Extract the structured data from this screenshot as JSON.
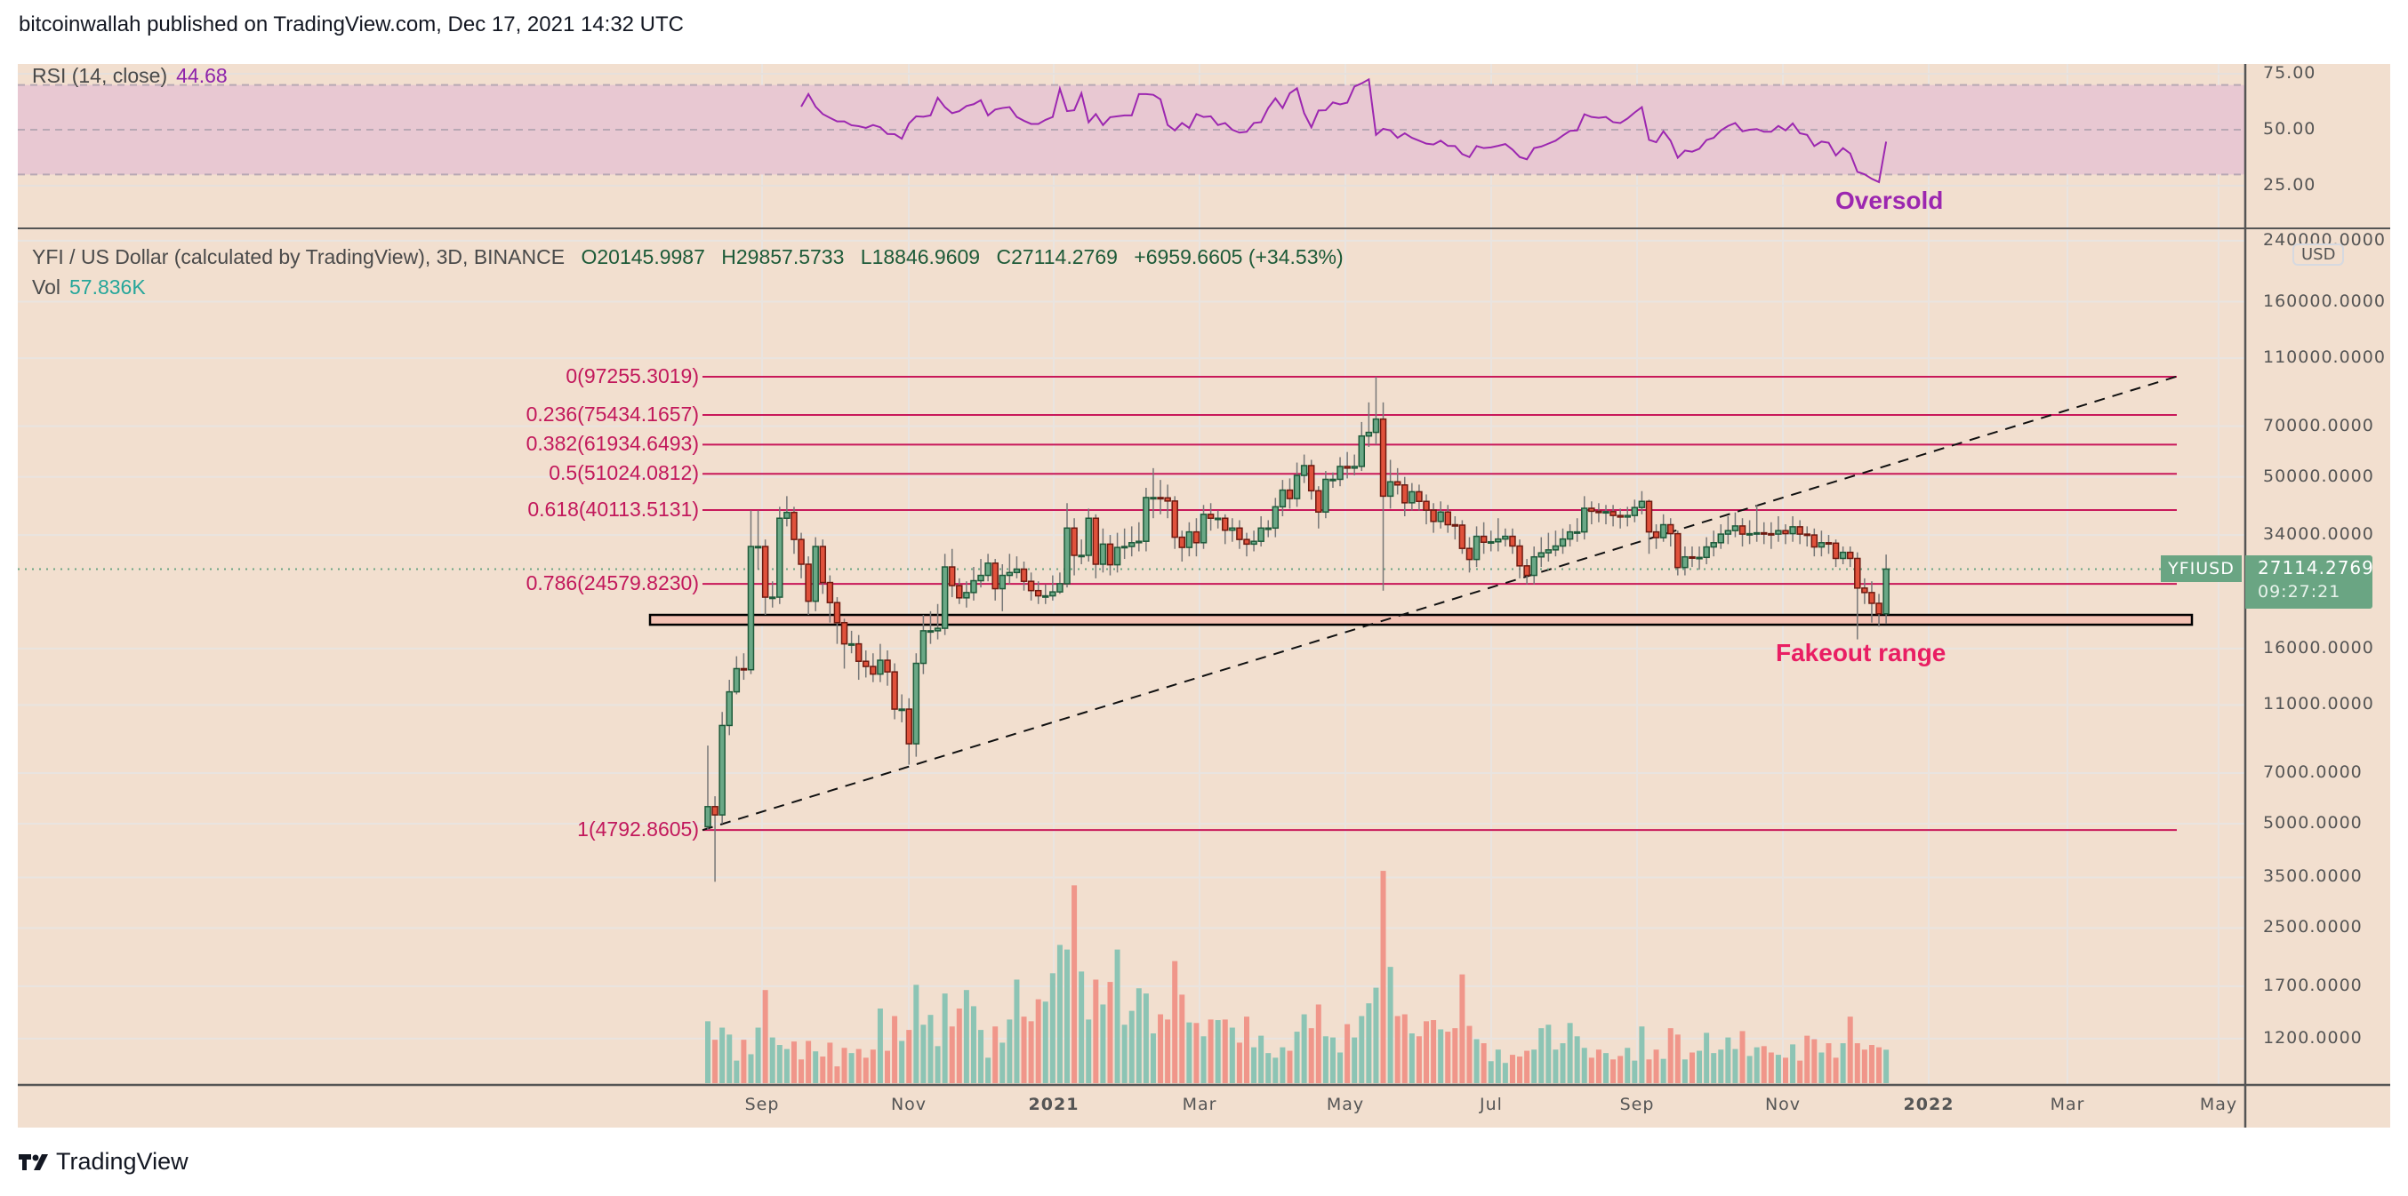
{
  "header": {
    "published": "bitcoinwallah published on TradingView.com, Dec 17, 2021 14:32 UTC"
  },
  "rsi": {
    "label": "RSI (14, close)",
    "value": "44.68",
    "axis_labels": [
      "75.00",
      "50.00",
      "25.00"
    ],
    "upper_band": 70,
    "middle_band": 50,
    "lower_band": 30,
    "line_color": "#9c27b0",
    "band_color": "#e8c8d2",
    "annotation": "Oversold"
  },
  "symbol": {
    "title": "YFI / US Dollar (calculated by TradingView), 3D, BINANCE",
    "open": "O20145.9987",
    "high": "H29857.5733",
    "low": "L18846.9609",
    "close": "C27114.2769",
    "change": "+6959.6605 (+34.53%)",
    "vol_label": "Vol",
    "vol_value": "57.836K"
  },
  "price_axis": {
    "labels": [
      "240000.0000",
      "160000.0000",
      "110000.0000",
      "70000.0000",
      "50000.0000",
      "34000.0000",
      "16000.0000",
      "11000.0000",
      "7000.0000",
      "5000.0000",
      "3500.0000",
      "2500.0000",
      "1700.0000",
      "1200.0000"
    ],
    "scale": "log",
    "currency": "USD",
    "symbol_tag": "YFIUSD",
    "last_price": "27114.2769",
    "countdown": "09:27:21",
    "last_price_color": "#6aa583"
  },
  "time_axis": {
    "labels": [
      "Sep",
      "Nov",
      "2021",
      "Mar",
      "May",
      "Jul",
      "Sep",
      "Nov",
      "2022",
      "Mar",
      "May"
    ]
  },
  "fib": [
    {
      "label": "0(97255.3019)",
      "price": 97255.3019
    },
    {
      "label": "0.236(75434.1657)",
      "price": 75434.1657
    },
    {
      "label": "0.382(61934.6493)",
      "price": 61934.6493
    },
    {
      "label": "0.5(51024.0812)",
      "price": 51024.0812
    },
    {
      "label": "0.618(40113.5131)",
      "price": 40113.5131
    },
    {
      "label": "0.786(24579.8230)",
      "price": 24579.823
    },
    {
      "label": "1(4792.8605)",
      "price": 4792.8605
    }
  ],
  "fib_color": "#c8185a",
  "annotations": {
    "fakeout_label": "Fakeout range",
    "fakeout_range": [
      18740,
      20000
    ],
    "fakeout_fill": "#f4c2b4",
    "trendline_from_price": 4792.8605,
    "trendline_to_price": 97255.3019
  },
  "branding": {
    "name": "TradingView"
  },
  "chart_data": {
    "type": "candlestick",
    "interval": "3D",
    "yscale": "log",
    "first_open": 4900,
    "colors": {
      "up": "#6aa886",
      "up_border": "#1e5a3a",
      "down": "#e0513b",
      "down_border": "#6e1a10",
      "vol_up": "#8cc4b4",
      "vol_down": "#f0968a"
    },
    "close": [
      5600,
      5300,
      9600,
      12000,
      14000,
      13900,
      31500,
      31500,
      22500,
      22500,
      38000,
      39500,
      33000,
      28000,
      21900,
      31500,
      24800,
      21700,
      19000,
      16500,
      16500,
      14700,
      14200,
      13500,
      14800,
      13700,
      10700,
      10700,
      8500,
      14500,
      18000,
      18000,
      18300,
      27500,
      24300,
      22400,
      23200,
      25100,
      26000,
      28200,
      23800,
      26000,
      26500,
      27100,
      25000,
      23500,
      22700,
      22700,
      23300,
      24600,
      35600,
      29700,
      29700,
      38000,
      28000,
      32000,
      27900,
      31300,
      31500,
      32300,
      32600,
      43600,
      43600,
      43500,
      42600,
      33500,
      31300,
      34700,
      32300,
      39000,
      38000,
      38000,
      35100,
      35600,
      33000,
      32000,
      32600,
      35600,
      35600,
      41000,
      45800,
      43300,
      50500,
      53900,
      45600,
      39600,
      49200,
      49200,
      53600,
      53000,
      53600,
      65600,
      67200,
      73400,
      44000,
      48400,
      47400,
      42100,
      45300,
      42500,
      40100,
      37200,
      39600,
      36400,
      36300,
      31100,
      28900,
      33700,
      32400,
      32500,
      33100,
      33700,
      31600,
      27700,
      26000,
      29400,
      30200,
      30800,
      31600,
      33100,
      34700,
      34700,
      40600,
      39800,
      39600,
      39700,
      38700,
      38300,
      38700,
      40800,
      42500,
      34700,
      33400,
      36400,
      34300,
      27400,
      29400,
      29200,
      29300,
      31400,
      32300,
      34200,
      35000,
      36100,
      34200,
      34300,
      34500,
      34300,
      34200,
      35000,
      34300,
      35900,
      34200,
      34000,
      31400,
      32300,
      32200,
      29100,
      30300,
      29100,
      23900,
      23200,
      21600,
      20146,
      27114.2769
    ],
    "high": [
      8400,
      6000,
      10500,
      13000,
      15200,
      15500,
      40000,
      40000,
      33000,
      25000,
      41000,
      44000,
      41000,
      34500,
      29500,
      33500,
      33000,
      26000,
      22500,
      19500,
      18000,
      17500,
      15800,
      15500,
      16500,
      15800,
      14500,
      11800,
      11500,
      15500,
      20000,
      20500,
      21500,
      30000,
      31000,
      25500,
      25000,
      27500,
      29000,
      30000,
      29000,
      28000,
      30000,
      29500,
      28500,
      26500,
      25000,
      24500,
      26000,
      26500,
      42000,
      38000,
      33000,
      40500,
      39000,
      35500,
      34000,
      34500,
      35500,
      36000,
      37000,
      46500,
      53000,
      49000,
      47500,
      44000,
      35000,
      37000,
      38000,
      41500,
      42000,
      40000,
      39000,
      38000,
      37500,
      34500,
      35000,
      38500,
      37500,
      43500,
      49000,
      49500,
      55000,
      58000,
      56000,
      47000,
      52000,
      51500,
      57000,
      59000,
      58000,
      72000,
      82000,
      97255,
      82000,
      56000,
      53000,
      50000,
      48000,
      47500,
      44500,
      42000,
      42500,
      41500,
      38500,
      37500,
      33500,
      36000,
      37000,
      35000,
      38000,
      35500,
      35500,
      33000,
      29000,
      31500,
      33500,
      34500,
      35000,
      35500,
      36500,
      38000,
      44000,
      42500,
      42000,
      41500,
      41500,
      40500,
      41000,
      43000,
      45500,
      43000,
      36500,
      39000,
      38000,
      35000,
      31500,
      31500,
      31500,
      33500,
      35000,
      36500,
      38500,
      39500,
      38000,
      37500,
      41500,
      37000,
      37000,
      38500,
      36500,
      38500,
      37500,
      36000,
      35500,
      35000,
      34000,
      33000,
      31500,
      31500,
      30300,
      25500,
      25000,
      23000,
      29857.5733
    ],
    "low": [
      4800,
      3400,
      5000,
      9000,
      11800,
      13000,
      13500,
      27000,
      20000,
      21000,
      21500,
      36000,
      30000,
      25500,
      20000,
      20500,
      23000,
      19000,
      16500,
      14000,
      15500,
      13000,
      13200,
      12800,
      12800,
      12500,
      10000,
      9800,
      7400,
      7800,
      13500,
      16500,
      17000,
      17500,
      22500,
      21500,
      21000,
      22000,
      24000,
      25000,
      22000,
      20500,
      24500,
      25500,
      23500,
      22000,
      21500,
      21500,
      22000,
      23000,
      24000,
      26000,
      28000,
      28500,
      25500,
      26500,
      26000,
      26500,
      29000,
      29500,
      30500,
      30500,
      38000,
      39000,
      38000,
      31000,
      28500,
      29500,
      29500,
      31000,
      35000,
      35500,
      32000,
      32500,
      31000,
      29500,
      30500,
      31500,
      33500,
      33500,
      38500,
      40500,
      41000,
      48000,
      43000,
      35500,
      38000,
      46500,
      47000,
      49500,
      50500,
      52000,
      61000,
      62000,
      23500,
      40500,
      44500,
      38500,
      40000,
      40000,
      36500,
      34500,
      35500,
      34500,
      33000,
      30000,
      26500,
      27500,
      30000,
      30500,
      30500,
      31500,
      30000,
      25500,
      24500,
      24500,
      27500,
      28500,
      29500,
      30000,
      31500,
      32500,
      33000,
      36500,
      37000,
      36500,
      36000,
      35500,
      36000,
      37000,
      39000,
      30000,
      31000,
      32500,
      31500,
      26000,
      26000,
      27500,
      27000,
      28000,
      29500,
      31000,
      32000,
      33500,
      31500,
      32000,
      32500,
      32000,
      31000,
      32500,
      32000,
      32500,
      32000,
      31500,
      29500,
      29500,
      30000,
      27500,
      28000,
      27500,
      17000,
      21500,
      19000,
      18500,
      18846.9609
    ],
    "volume_k": [
      107,
      75,
      96,
      84,
      39,
      75,
      50,
      96,
      161,
      79,
      66,
      59,
      72,
      41,
      73,
      55,
      46,
      70,
      29,
      61,
      52,
      59,
      44,
      58,
      129,
      56,
      116,
      73,
      92,
      170,
      101,
      118,
      64,
      155,
      98,
      129,
      161,
      133,
      92,
      44,
      98,
      70,
      110,
      179,
      115,
      107,
      145,
      141,
      190,
      239,
      231,
      342,
      193,
      110,
      179,
      136,
      175,
      231,
      101,
      125,
      164,
      155,
      86,
      119,
      110,
      211,
      153,
      105,
      104,
      81,
      110,
      109,
      110,
      96,
      70,
      115,
      62,
      82,
      52,
      44,
      62,
      56,
      89,
      119,
      95,
      136,
      81,
      79,
      53,
      102,
      79,
      116,
      138,
      165,
      367,
      201,
      116,
      119,
      86,
      81,
      107,
      109,
      93,
      89,
      95,
      188,
      99,
      76,
      69,
      38,
      58,
      35,
      49,
      46,
      56,
      58,
      95,
      101,
      58,
      69,
      104,
      81,
      61,
      44,
      58,
      52,
      41,
      47,
      61,
      39,
      98,
      41,
      58,
      42,
      95,
      84,
      41,
      53,
      56,
      87,
      52,
      58,
      79,
      59,
      90,
      47,
      62,
      64,
      53,
      49,
      44,
      67,
      39,
      82,
      76,
      53,
      69,
      44,
      69,
      115,
      69,
      58,
      66,
      62,
      57.836
    ],
    "rsi": [
      null,
      null,
      null,
      null,
      null,
      null,
      null,
      null,
      null,
      null,
      null,
      null,
      null,
      60.3,
      65.9,
      60.3,
      57.0,
      55.3,
      53.7,
      53.7,
      52.0,
      51.6,
      50.8,
      52.1,
      51.1,
      48.1,
      48.0,
      46.0,
      52.8,
      56.0,
      55.8,
      56.4,
      64.3,
      60.1,
      57.4,
      58.3,
      60.6,
      61.4,
      63.2,
      56.4,
      59.0,
      59.7,
      60.1,
      55.7,
      54.0,
      52.6,
      52.6,
      54.4,
      55.7,
      68.3,
      58.3,
      58.7,
      66.3,
      53.3,
      57.0,
      52.1,
      55.6,
      56.0,
      56.4,
      56.4,
      65.9,
      65.9,
      65.6,
      63.6,
      52.1,
      49.7,
      53.0,
      50.8,
      57.0,
      55.7,
      56.0,
      52.1,
      53.0,
      50.0,
      48.7,
      49.1,
      53.0,
      53.4,
      59.7,
      64.0,
      59.7,
      66.3,
      68.5,
      57.4,
      51.1,
      58.6,
      58.7,
      62.2,
      61.3,
      62.1,
      69.3,
      70.7,
      72.5,
      47.7,
      50.4,
      49.7,
      46.4,
      48.4,
      46.4,
      45.1,
      43.8,
      43.4,
      45.1,
      42.8,
      42.7,
      39.1,
      37.8,
      42.7,
      41.8,
      42.1,
      42.8,
      43.6,
      41.1,
      37.8,
      36.8,
      41.8,
      42.5,
      43.8,
      45.1,
      47.4,
      49.5,
      49.7,
      56.9,
      55.7,
      55.3,
      55.7,
      53.4,
      53.0,
      55.0,
      57.7,
      60.1,
      45.5,
      44.4,
      49.3,
      45.1,
      37.5,
      40.7,
      40.2,
      41.5,
      45.4,
      46.4,
      49.7,
      51.7,
      53.0,
      49.3,
      50.0,
      50.3,
      49.1,
      49.1,
      51.7,
      49.7,
      52.8,
      48.4,
      47.7,
      42.7,
      44.7,
      44.2,
      38.5,
      41.8,
      39.4,
      31.2,
      30.1,
      28.1,
      26.6,
      44.68
    ]
  }
}
